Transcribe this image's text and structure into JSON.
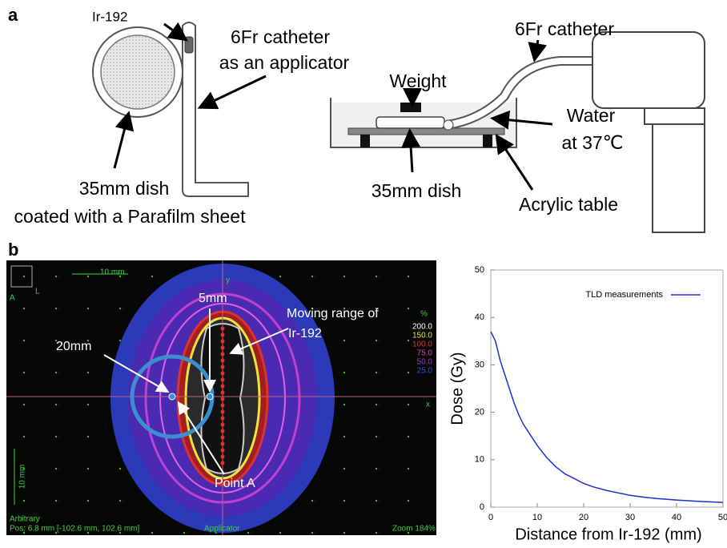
{
  "panel_a": {
    "label": "a",
    "ir": "Ir-192",
    "catheter_1": "6Fr catheter",
    "catheter_2": "as an applicator",
    "dish_1": "35mm dish",
    "dish_2": "coated with a Parafilm sheet",
    "weight": "Weight",
    "catheter_right": "6Fr catheter",
    "water_1": "Water",
    "water_2": "at 37℃",
    "dish_right": "35mm dish",
    "table": "Acrylic table"
  },
  "panel_b": {
    "label": "b",
    "scale_top": "10 mm",
    "scale_left": "10 mm",
    "axis_y": "y",
    "axis_x": "x",
    "orient_l": "L",
    "orient_a": "A",
    "five": "5mm",
    "twenty": "20mm",
    "moving_1": "Moving range of",
    "moving_2": "Ir-192",
    "point_a": "Point A",
    "iso_title": "%",
    "iso_levels": [
      "200.0",
      "150.0",
      "100.0",
      "75.0",
      "50.0",
      "25.0"
    ],
    "iso_colors": [
      "#ffffff",
      "#f0e040",
      "#e03030",
      "#e040c0",
      "#a030d0",
      "#3050e0"
    ],
    "status_1": "Arbitrary",
    "status_2": "Pos: 6.8 mm [-102.6 mm, 102.6 mm]",
    "status_3": "Applicator",
    "status_4": "Zoom 184%"
  },
  "chart_data": {
    "type": "line",
    "xlabel": "Distance from Ir-192 (mm)",
    "ylabel": "Dose (Gy)",
    "x": [
      0,
      1,
      2,
      3,
      4,
      5,
      6,
      7,
      8,
      9,
      10,
      12,
      14,
      16,
      18,
      20,
      22,
      25,
      28,
      30,
      33,
      36,
      40,
      45,
      50
    ],
    "series": [
      {
        "name": "TLD measurements",
        "color": "#2030d0",
        "values": [
          37,
          35,
          31,
          28,
          25,
          22,
          19.5,
          17.5,
          16,
          14.5,
          13,
          10.5,
          8.5,
          7,
          6,
          5,
          4.3,
          3.5,
          2.9,
          2.5,
          2.1,
          1.8,
          1.5,
          1.2,
          1.0
        ]
      }
    ],
    "xlim": [
      0,
      50
    ],
    "ylim": [
      0,
      50
    ],
    "xticks": [
      0,
      10,
      20,
      30,
      40,
      50
    ],
    "yticks": [
      0,
      10,
      20,
      30,
      40,
      50
    ]
  }
}
